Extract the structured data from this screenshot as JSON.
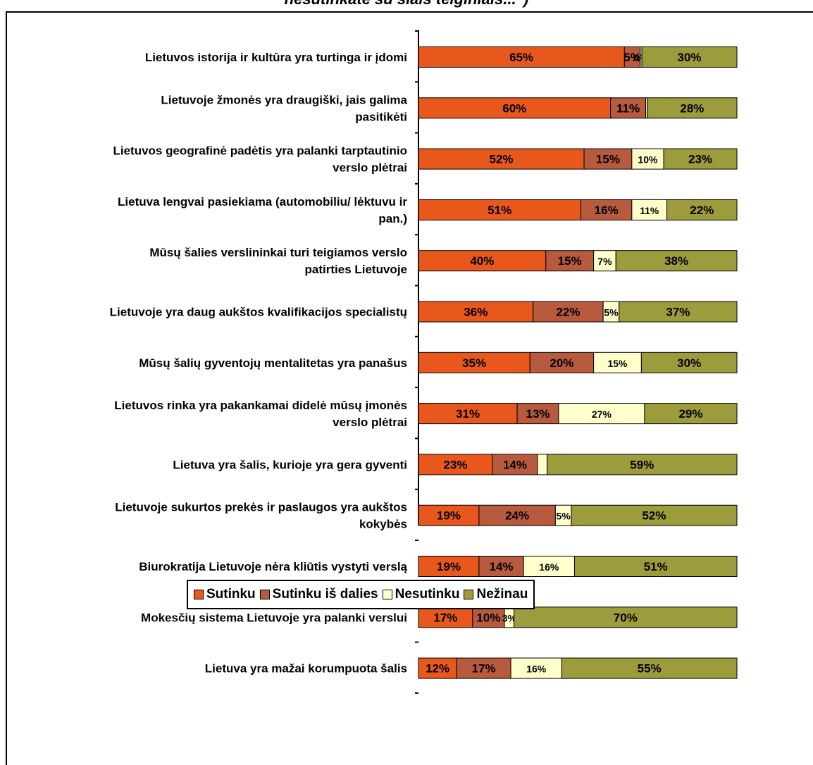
{
  "chart_data": {
    "type": "bar",
    "orientation": "horizontal",
    "stacked": true,
    "title": "nesutinkate su šiais teiginiais...\")",
    "categories": [
      "Lietuvos istorija ir kultūra yra turtinga ir įdomi",
      "Lietuvoje žmonės yra draugiški, jais galima pasitikėti",
      "Lietuvos geografinė padėtis yra palanki tarptautinio verslo plėtrai",
      "Lietuva lengvai pasiekiama (automobiliu/ lėktuvu ir pan.)",
      "Mūsų šalies verslininkai turi teigiamos verslo patirties Lietuvoje",
      "Lietuvoje yra daug aukštos kvalifikacijos specialistų",
      "Mūsų šalių gyventojų mentalitetas yra panašus",
      "Lietuvos rinka yra pakankamai didelė mūsų įmonės verslo plėtrai",
      "Lietuva yra šalis, kurioje yra gera gyventi",
      "Lietuvoje sukurtos prekės ir paslaugos yra aukštos kokybės",
      "Biurokratija Lietuvoje nėra kliūtis vystyti verslą",
      "Mokesčių sistema Lietuvoje yra palanki verslui",
      "Lietuva yra mažai korumpuota šalis"
    ],
    "category_lines": [
      [
        "Lietuvos istorija ir kultūra yra turtinga ir įdomi"
      ],
      [
        "Lietuvoje žmonės yra draugiški, jais galima",
        "pasitikėti"
      ],
      [
        "Lietuvos geografinė padėtis yra palanki tarptautinio",
        "verslo plėtrai"
      ],
      [
        "Lietuva lengvai pasiekiama (automobiliu/ lėktuvu ir",
        "pan.)"
      ],
      [
        "Mūsų šalies verslininkai turi teigiamos verslo",
        "patirties Lietuvoje"
      ],
      [
        "Lietuvoje yra daug aukštos kvalifikacijos specialistų"
      ],
      [
        "Mūsų šalių gyventojų mentalitetas yra panašus"
      ],
      [
        "Lietuvos rinka yra pakankamai didelė mūsų įmonės",
        "verslo plėtrai"
      ],
      [
        "Lietuva yra šalis, kurioje yra gera gyventi"
      ],
      [
        "Lietuvoje sukurtos prekės ir paslaugos yra aukštos",
        "kokybės"
      ],
      [
        "Biurokratija Lietuvoje nėra kliūtis vystyti verslą"
      ],
      [
        "Mokesčių sistema Lietuvoje yra palanki verslui"
      ],
      [
        "Lietuva yra mažai korumpuota šalis"
      ]
    ],
    "series": [
      {
        "name": "Sutinku",
        "color": "#E8581C",
        "values": [
          65,
          60,
          52,
          51,
          40,
          36,
          35,
          31,
          23,
          19,
          19,
          17,
          12
        ],
        "labels": [
          "65%",
          "60%",
          "52%",
          "51%",
          "40%",
          "36%",
          "35%",
          "31%",
          "23%",
          "19%",
          "19%",
          "17%",
          "12%"
        ]
      },
      {
        "name": "Sutinku iš dalies",
        "color": "#B85A3E",
        "values": [
          5,
          11,
          15,
          16,
          15,
          22,
          20,
          13,
          14,
          24,
          14,
          10,
          17
        ],
        "labels": [
          "5%",
          "11%",
          "15%",
          "16%",
          "15%",
          "22%",
          "20%",
          "13%",
          "14%",
          "24%",
          "14%",
          "10%",
          "17%"
        ]
      },
      {
        "name": "Nesutinku",
        "color": "#FFFFCC",
        "values": [
          0.5,
          0.5,
          10,
          11,
          7,
          5,
          15,
          27,
          3,
          5,
          16,
          3,
          16
        ],
        "labels": [
          "0%",
          "",
          "10%",
          "11%",
          "7%",
          "5%",
          "15%",
          "27%",
          "",
          "5%",
          "16%",
          "3%",
          "16%"
        ]
      },
      {
        "name": "Nežinau",
        "color": "#9C9C3C",
        "values": [
          30,
          28,
          23,
          22,
          38,
          37,
          30,
          29,
          59,
          52,
          51,
          70,
          55
        ],
        "labels": [
          "30%",
          "28%",
          "23%",
          "22%",
          "38%",
          "37%",
          "30%",
          "29%",
          "59%",
          "52%",
          "51%",
          "70%",
          "55%"
        ]
      }
    ],
    "xlim": [
      0,
      100
    ],
    "grid": false,
    "legend_position": "bottom"
  }
}
